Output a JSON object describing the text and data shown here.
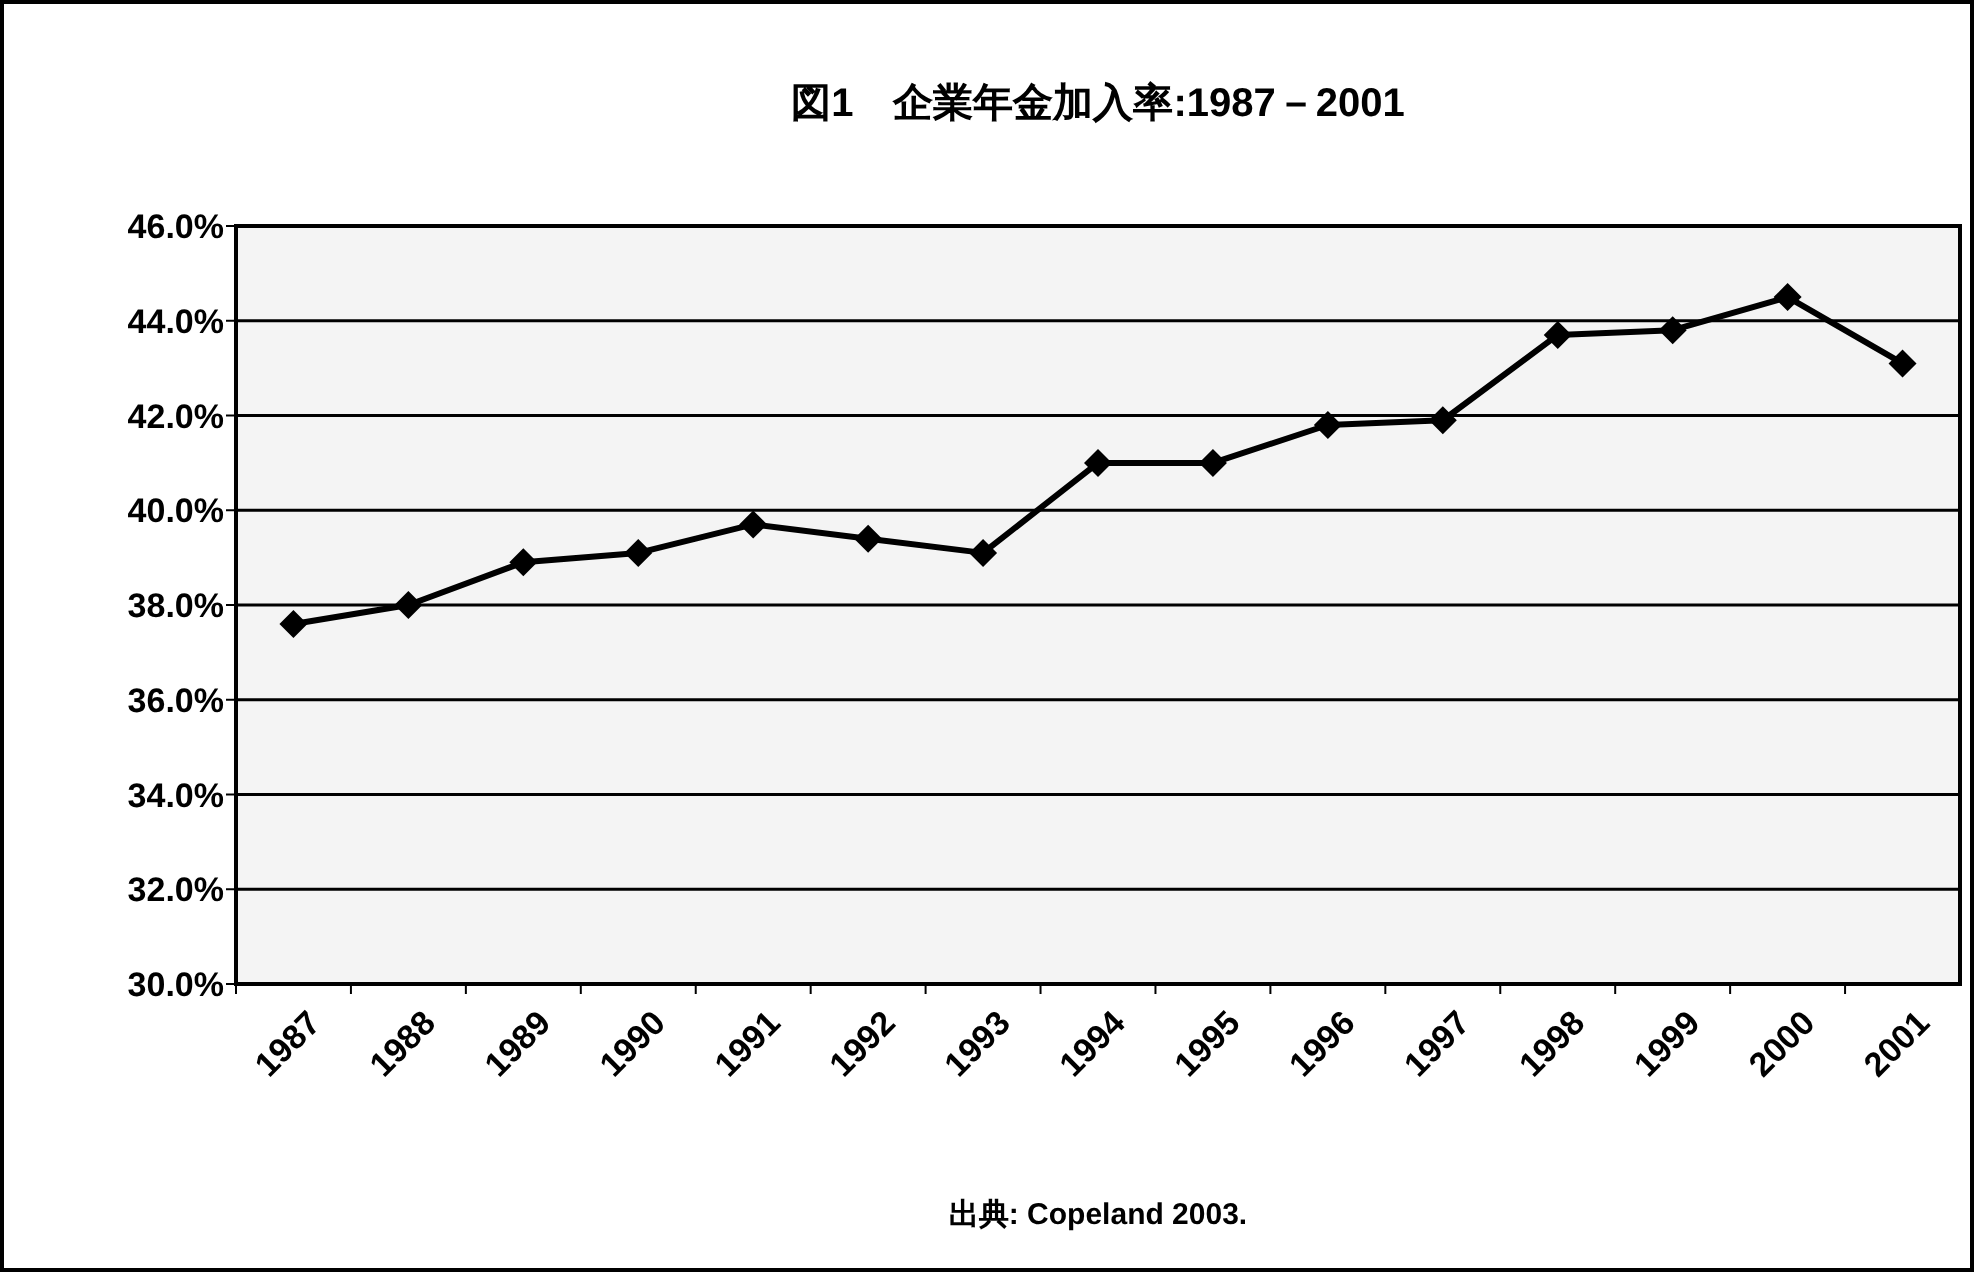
{
  "chart_data": {
    "type": "line",
    "title": "図1　企業年金加入率:1987－2001",
    "categories": [
      "1987",
      "1988",
      "1989",
      "1990",
      "1991",
      "1992",
      "1993",
      "1994",
      "1995",
      "1996",
      "1997",
      "1998",
      "1999",
      "2000",
      "2001"
    ],
    "series": [
      {
        "color": "#000000",
        "values": [
          37.6,
          38.0,
          38.9,
          39.1,
          39.7,
          39.4,
          39.1,
          41.0,
          41.0,
          41.8,
          41.9,
          43.7,
          43.8,
          44.5,
          43.1
        ]
      }
    ],
    "ylim": [
      30,
      46
    ],
    "yticks": [
      {
        "value": 30,
        "label": "30.0%"
      },
      {
        "value": 32,
        "label": "32.0%"
      },
      {
        "value": 34,
        "label": "34.0%"
      },
      {
        "value": 36,
        "label": "36.0%"
      },
      {
        "value": 38,
        "label": "38.0%"
      },
      {
        "value": 40,
        "label": "40.0%"
      },
      {
        "value": 42,
        "label": "42.0%"
      },
      {
        "value": 44,
        "label": "44.0%"
      },
      {
        "value": 46,
        "label": "46.0%"
      }
    ],
    "grid": "y",
    "marker": "diamond",
    "line_style": "solid",
    "annotations": [
      "出典:  Copeland 2003."
    ]
  }
}
